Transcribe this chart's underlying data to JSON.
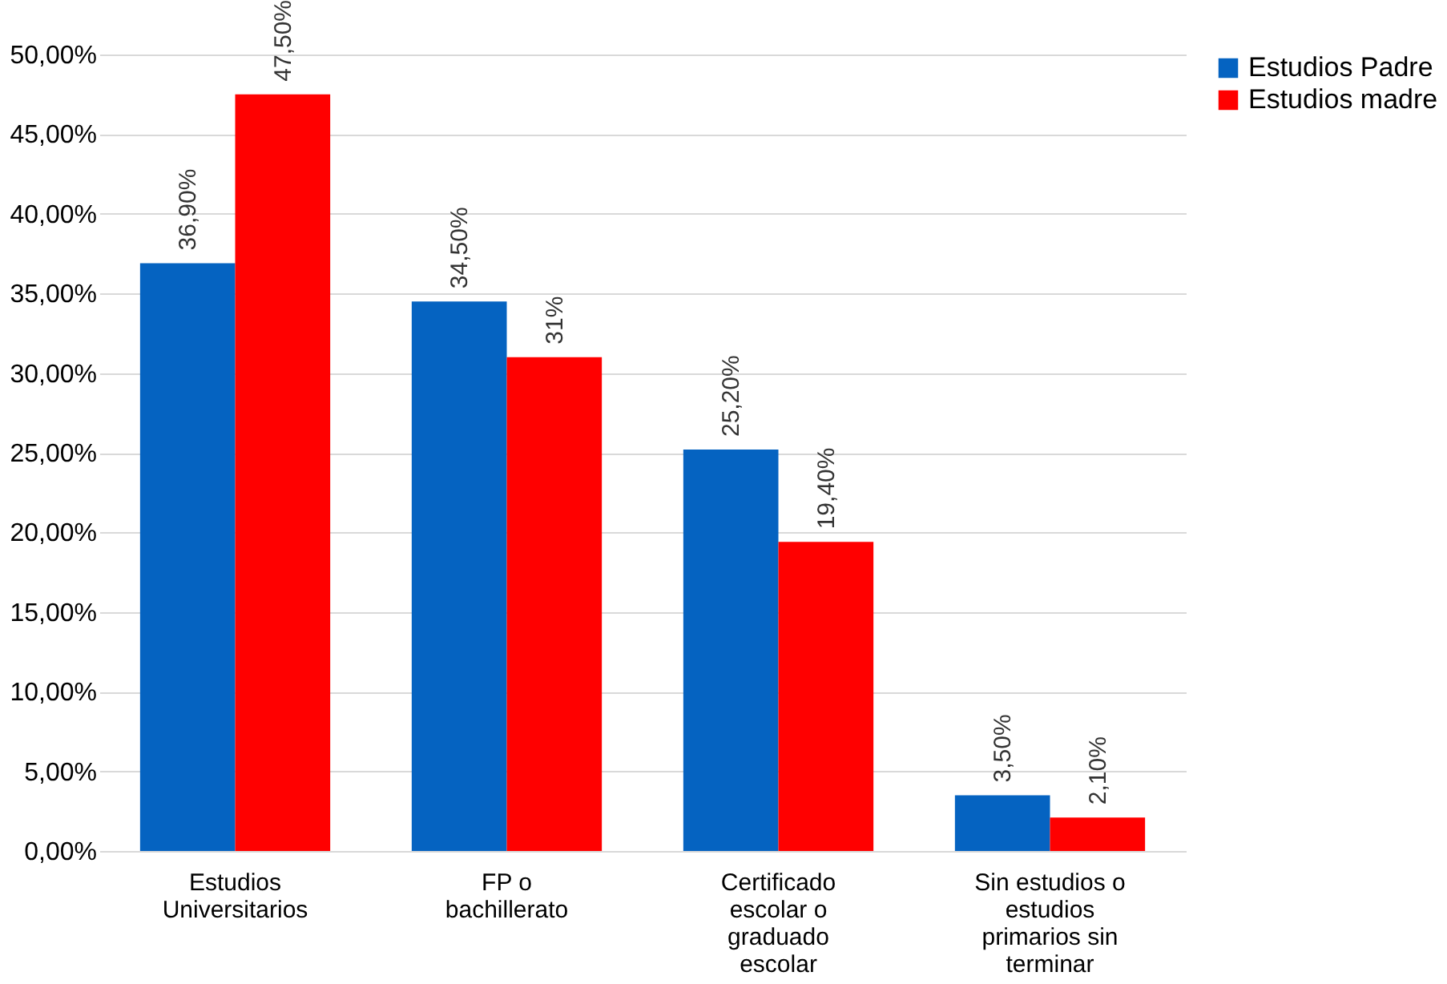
{
  "chart_data": {
    "type": "bar",
    "categories": [
      "Estudios Universitarios",
      "FP o bachillerato",
      "Certificado escolar o graduado escolar",
      "Sin estudios o estudios primarios sin terminar"
    ],
    "series": [
      {
        "name": "Estudios Padre",
        "color": "#0563c1",
        "values": [
          36.9,
          34.5,
          25.2,
          3.5
        ],
        "value_labels": [
          "36,90%",
          "34,50%",
          "25,20%",
          "3,50%"
        ]
      },
      {
        "name": "Estudios madre",
        "color": "#ff0000",
        "values": [
          47.5,
          31,
          19.4,
          2.1
        ],
        "value_labels": [
          "47,50%",
          "31%",
          "19,40%",
          "2,10%"
        ]
      }
    ],
    "ylim": [
      0,
      50
    ],
    "yticks": [
      {
        "value": 0,
        "label": "0,00%"
      },
      {
        "value": 5,
        "label": "5,00%"
      },
      {
        "value": 10,
        "label": "10,00%"
      },
      {
        "value": 15,
        "label": "15,00%"
      },
      {
        "value": 20,
        "label": "20,00%"
      },
      {
        "value": 25,
        "label": "25,00%"
      },
      {
        "value": 30,
        "label": "30,00%"
      },
      {
        "value": 35,
        "label": "35,00%"
      },
      {
        "value": 40,
        "label": "40,00%"
      },
      {
        "value": 45,
        "label": "45,00%"
      },
      {
        "value": 50,
        "label": "50,00%"
      }
    ],
    "grid": "y",
    "legend": "right"
  }
}
